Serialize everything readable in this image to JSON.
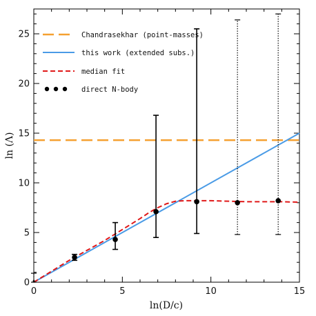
{
  "chart_data": {
    "type": "line",
    "xlabel": "ln(D/c)",
    "ylabel": "ln (Λ)",
    "xlim": [
      0,
      15
    ],
    "ylim": [
      0,
      27.5
    ],
    "x_ticks": [
      0,
      5,
      10,
      15
    ],
    "y_ticks": [
      0,
      5,
      10,
      15,
      20,
      25
    ],
    "grid": false,
    "legend_position": "top-left",
    "series": [
      {
        "name": "Chandrasekhar (point-masses)",
        "style": "long-dash",
        "color": "#f5a030",
        "points": [
          [
            0,
            14.3
          ],
          [
            15,
            14.3
          ]
        ]
      },
      {
        "name": "this work (extended subs.)",
        "style": "solid",
        "color": "#4a9be6",
        "points": [
          [
            0,
            0
          ],
          [
            15,
            15
          ]
        ]
      },
      {
        "name": "median fit",
        "style": "dash",
        "color": "#e01818",
        "points": [
          [
            0,
            0
          ],
          [
            1,
            1.1
          ],
          [
            2,
            2.2
          ],
          [
            3,
            3.2
          ],
          [
            4,
            4.2
          ],
          [
            5,
            5.3
          ],
          [
            6,
            6.4
          ],
          [
            6.5,
            7.0
          ],
          [
            7,
            7.5
          ],
          [
            7.5,
            7.9
          ],
          [
            8,
            8.15
          ],
          [
            8.5,
            8.2
          ],
          [
            9,
            8.2
          ],
          [
            10,
            8.2
          ],
          [
            11,
            8.15
          ],
          [
            12,
            8.1
          ],
          [
            13,
            8.1
          ],
          [
            14,
            8.1
          ],
          [
            15,
            8.05
          ]
        ]
      }
    ],
    "nbody": {
      "name": "direct N-body",
      "color": "#000000",
      "points": [
        {
          "x": 0,
          "y": 0.1,
          "lo": 0,
          "hi": 0.9,
          "dotted": true
        },
        {
          "x": 2.3,
          "y": 2.5,
          "lo": 2.2,
          "hi": 2.8,
          "dotted": false
        },
        {
          "x": 4.6,
          "y": 4.3,
          "lo": 3.3,
          "hi": 6.0,
          "dotted": false
        },
        {
          "x": 6.9,
          "y": 7.1,
          "lo": 4.5,
          "hi": 16.8,
          "dotted": false
        },
        {
          "x": 9.2,
          "y": 8.1,
          "lo": 4.9,
          "hi": 25.5,
          "dotted": false
        },
        {
          "x": 11.5,
          "y": 8.0,
          "lo": 4.8,
          "hi": 26.4,
          "dotted": true
        },
        {
          "x": 13.8,
          "y": 8.2,
          "lo": 4.8,
          "hi": 27.0,
          "dotted": true
        }
      ]
    }
  }
}
